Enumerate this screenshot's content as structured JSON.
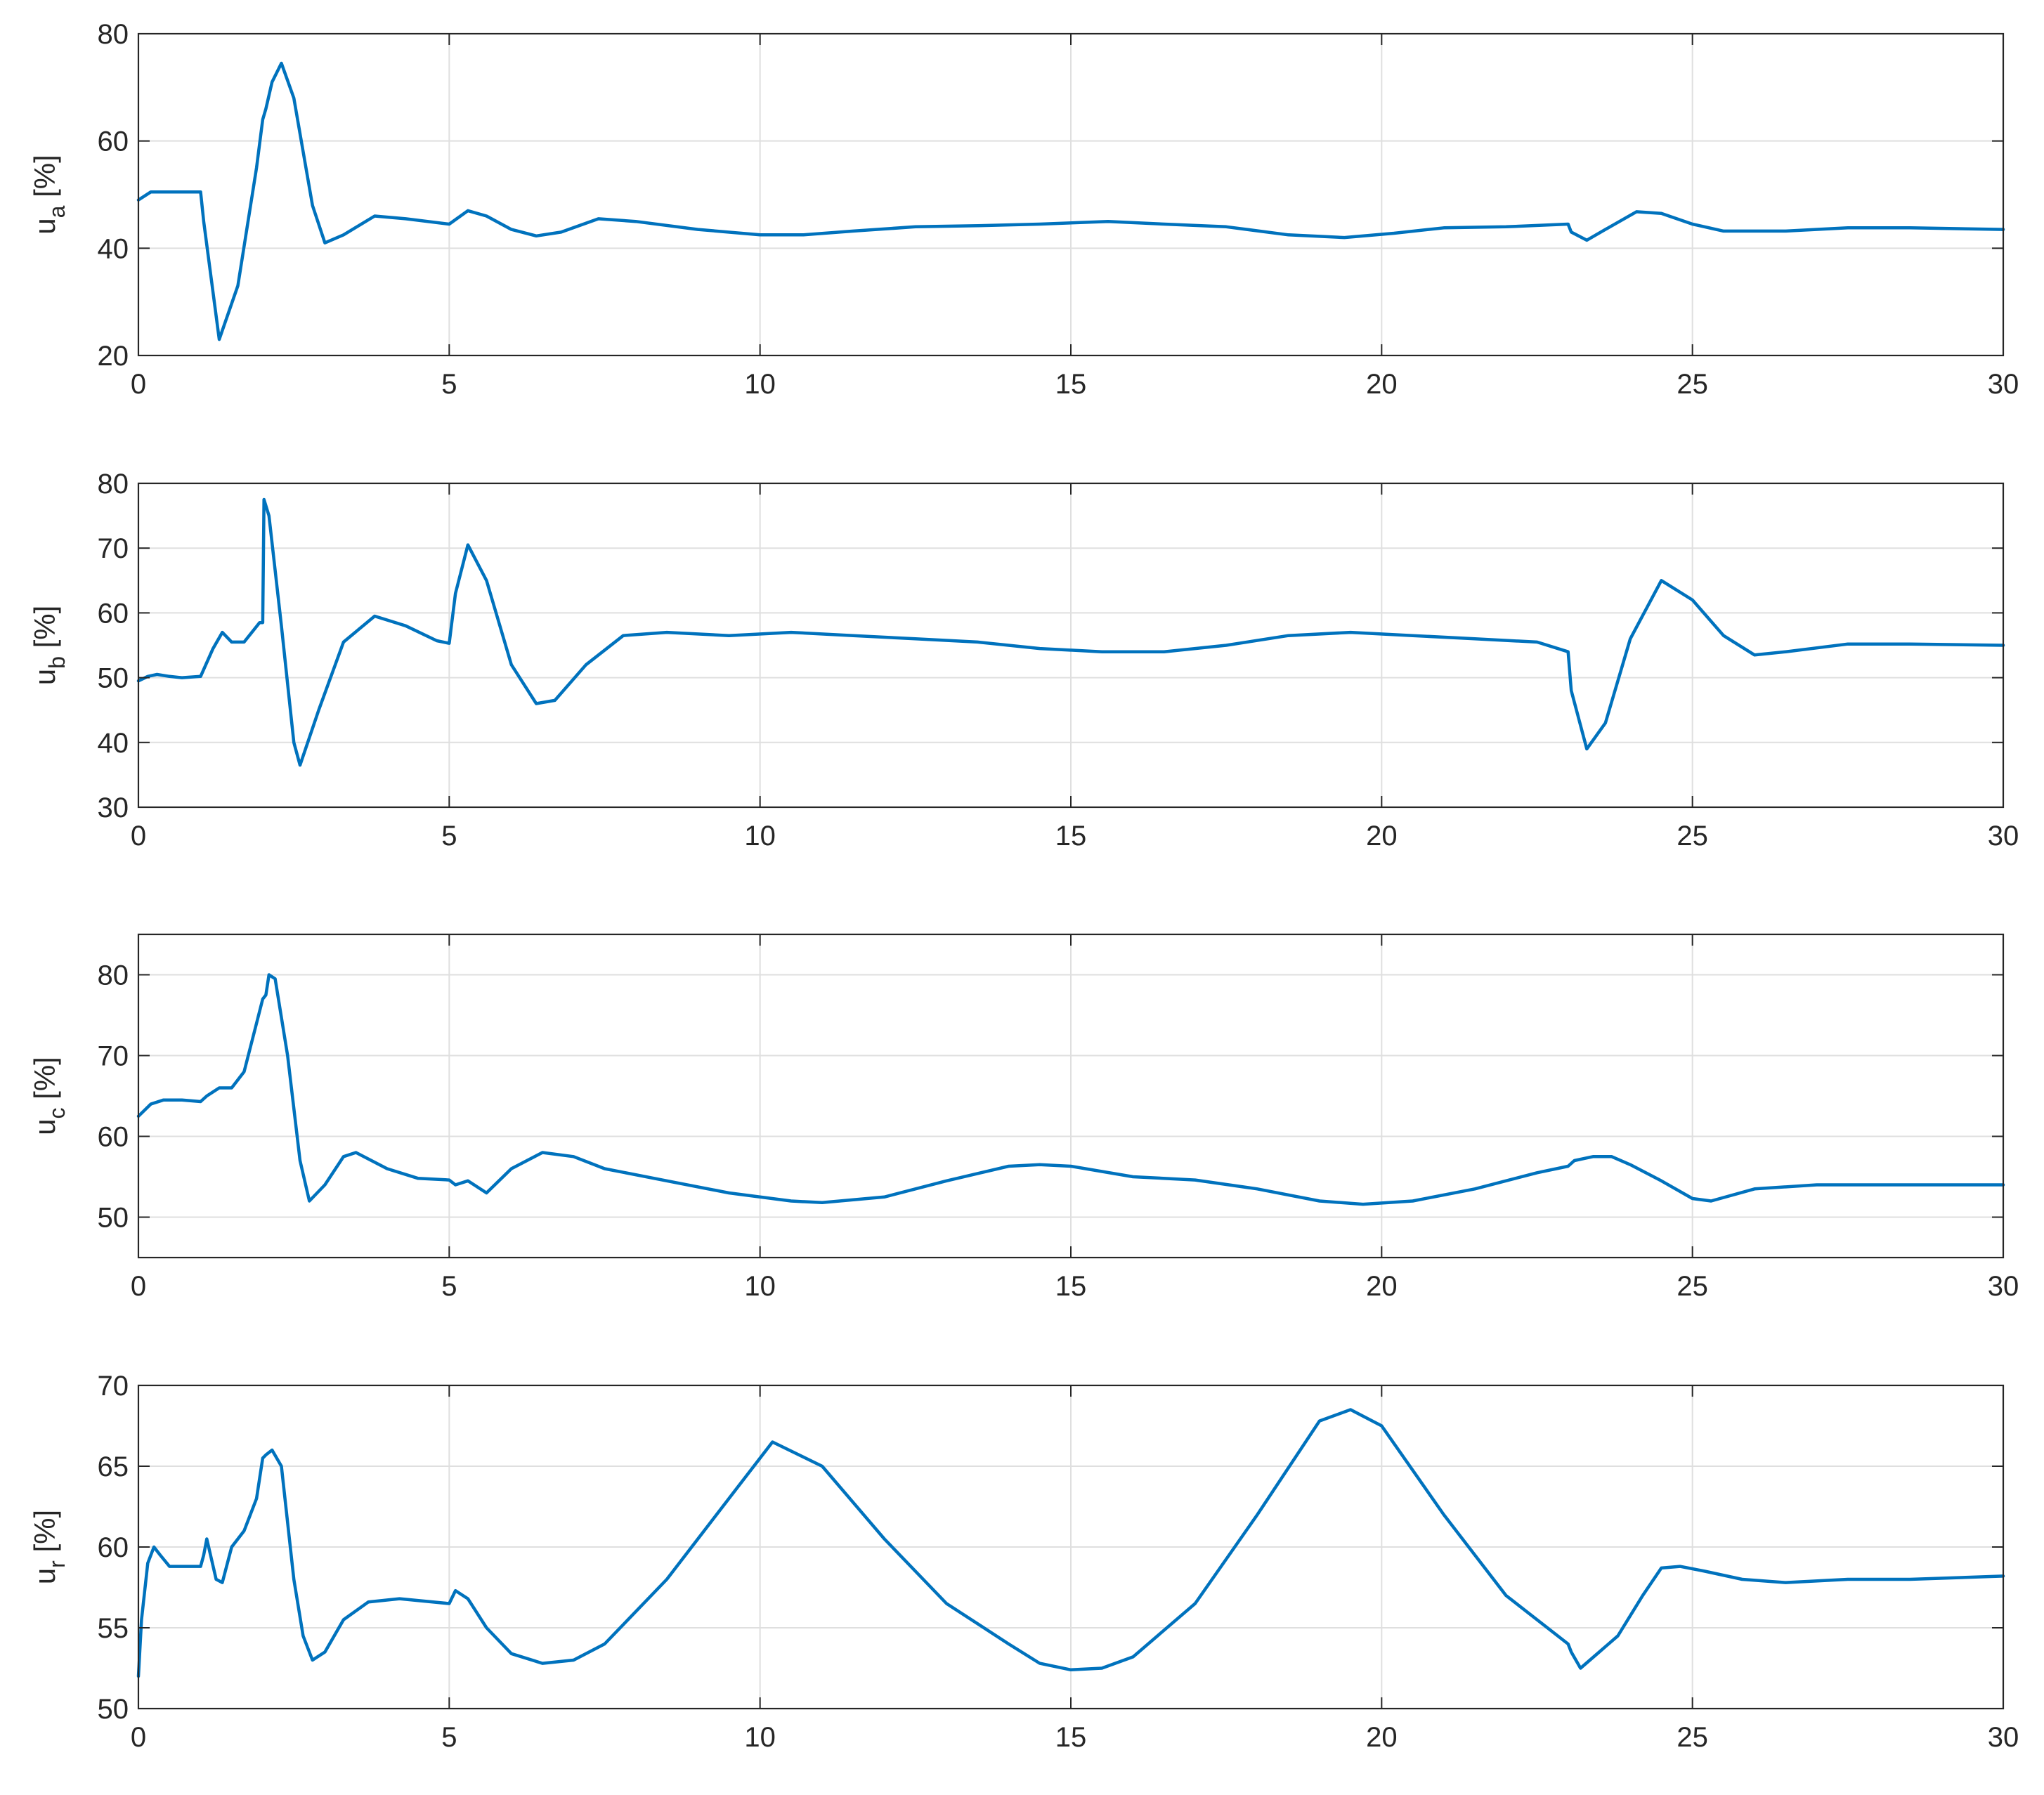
{
  "chart_data": [
    {
      "type": "line",
      "ylabel": "u",
      "ylabel_sub": "a",
      "ylabel_unit": " [%]",
      "xlim": [
        0,
        30
      ],
      "ylim": [
        20,
        80
      ],
      "xticks": [
        0,
        5,
        10,
        15,
        20,
        25,
        30
      ],
      "yticks": [
        20,
        40,
        60,
        80
      ],
      "grid": true,
      "series": [
        {
          "color": "#0072BD",
          "x": [
            0,
            0.2,
            1.0,
            1.05,
            1.3,
            1.6,
            1.9,
            2.0,
            2.05,
            2.15,
            2.3,
            2.5,
            2.8,
            3.0,
            3.3,
            3.8,
            4.3,
            5.0,
            5.3,
            5.6,
            6.0,
            6.4,
            6.8,
            7.4,
            8.0,
            9.0,
            10.0,
            10.7,
            11.5,
            12.5,
            13.5,
            14.5,
            15.6,
            16.5,
            17.5,
            18.5,
            19.4,
            20.2,
            21.0,
            22.0,
            23.0,
            23.05,
            23.3,
            23.6,
            24.1,
            24.5,
            25.0,
            25.5,
            26.5,
            27.5,
            28.5,
            30.0
          ],
          "y": [
            49,
            50.5,
            50.5,
            45,
            23,
            33,
            55,
            64,
            66,
            71,
            74.5,
            68,
            48,
            41,
            42.5,
            46,
            45.5,
            44.5,
            47,
            46,
            43.5,
            42.3,
            43,
            45.5,
            45,
            43.5,
            42.5,
            42.5,
            43.2,
            44,
            44.2,
            44.5,
            45,
            44.5,
            44,
            42.5,
            42,
            42.8,
            43.8,
            44,
            44.5,
            43,
            41.5,
            43.5,
            46.8,
            46.5,
            44.5,
            43.2,
            43.2,
            43.8,
            43.8,
            43.5
          ]
        }
      ]
    },
    {
      "type": "line",
      "ylabel": "u",
      "ylabel_sub": "b",
      "ylabel_unit": " [%]",
      "xlim": [
        0,
        30
      ],
      "ylim": [
        30,
        80
      ],
      "xticks": [
        0,
        5,
        10,
        15,
        20,
        25,
        30
      ],
      "yticks": [
        30,
        40,
        50,
        60,
        70,
        80
      ],
      "grid": true,
      "series": [
        {
          "color": "#0072BD",
          "x": [
            0,
            0.15,
            0.3,
            0.5,
            0.7,
            1.0,
            1.2,
            1.35,
            1.5,
            1.7,
            1.95,
            2.0,
            2.02,
            2.1,
            2.3,
            2.5,
            2.6,
            2.9,
            3.3,
            3.8,
            4.3,
            4.8,
            5.0,
            5.1,
            5.3,
            5.6,
            6.0,
            6.4,
            6.7,
            7.2,
            7.8,
            8.5,
            9.5,
            10.5,
            11.5,
            12.5,
            13.5,
            14.5,
            15.5,
            16.5,
            17.5,
            18.5,
            19.5,
            20.5,
            21.5,
            22.5,
            23.0,
            23.05,
            23.3,
            23.6,
            24.0,
            24.5,
            25.0,
            25.5,
            26.0,
            26.5,
            27.5,
            28.5,
            30.0
          ],
          "y": [
            49.5,
            50.2,
            50.5,
            50.2,
            50,
            50.2,
            54.5,
            57,
            55.5,
            55.5,
            58.5,
            58.5,
            77.5,
            75,
            58,
            40,
            36.5,
            45,
            55.5,
            59.5,
            58,
            55.7,
            55.3,
            63,
            70.5,
            65,
            52,
            46,
            46.5,
            52,
            56.5,
            57,
            56.5,
            57,
            56.5,
            56,
            55.5,
            54.5,
            54,
            54,
            55,
            56.5,
            57,
            56.5,
            56,
            55.5,
            54,
            48,
            39,
            43,
            56,
            65,
            62,
            56.5,
            53.5,
            54,
            55.2,
            55.2,
            55
          ]
        }
      ]
    },
    {
      "type": "line",
      "ylabel": "u",
      "ylabel_sub": "c",
      "ylabel_unit": " [%]",
      "xlim": [
        0,
        30
      ],
      "ylim": [
        45,
        85
      ],
      "xticks": [
        0,
        5,
        10,
        15,
        20,
        25,
        30
      ],
      "yticks": [
        50,
        60,
        70,
        80
      ],
      "grid": true,
      "series": [
        {
          "color": "#0072BD",
          "x": [
            0,
            0.2,
            0.4,
            0.7,
            1.0,
            1.1,
            1.3,
            1.5,
            1.7,
            1.9,
            2.0,
            2.05,
            2.1,
            2.2,
            2.4,
            2.6,
            2.75,
            3.0,
            3.3,
            3.5,
            4.0,
            4.5,
            5.0,
            5.1,
            5.3,
            5.6,
            6.0,
            6.5,
            7.0,
            7.5,
            8.5,
            9.5,
            10.5,
            11.0,
            12.0,
            13.0,
            14.0,
            14.5,
            15.0,
            16.0,
            17.0,
            18.0,
            19.0,
            19.7,
            20.5,
            21.5,
            22.5,
            23.0,
            23.1,
            23.4,
            23.7,
            24.0,
            24.5,
            25.0,
            25.3,
            26.0,
            27.0,
            28.0,
            30.0
          ],
          "y": [
            62.5,
            64,
            64.5,
            64.5,
            64.3,
            65,
            66,
            66,
            68,
            74,
            77,
            77.5,
            80,
            79.5,
            70,
            57,
            52,
            54,
            57.5,
            58,
            56,
            54.8,
            54.6,
            54,
            54.5,
            53,
            56,
            58,
            57.5,
            56,
            54.5,
            53,
            52,
            51.8,
            52.5,
            54.5,
            56.3,
            56.5,
            56.3,
            55,
            54.6,
            53.5,
            52,
            51.6,
            52,
            53.5,
            55.5,
            56.3,
            57,
            57.5,
            57.5,
            56.5,
            54.5,
            52.3,
            52,
            53.5,
            54,
            54,
            54
          ]
        }
      ]
    },
    {
      "type": "line",
      "ylabel": "u",
      "ylabel_sub": "r",
      "ylabel_unit": " [%]",
      "xlim": [
        0,
        30
      ],
      "ylim": [
        50,
        70
      ],
      "xticks": [
        0,
        5,
        10,
        15,
        20,
        25,
        30
      ],
      "yticks": [
        50,
        55,
        60,
        65,
        70
      ],
      "grid": true,
      "series": [
        {
          "color": "#0072BD",
          "x": [
            0,
            0.05,
            0.15,
            0.25,
            0.35,
            0.5,
            0.7,
            1.0,
            1.05,
            1.1,
            1.25,
            1.35,
            1.5,
            1.7,
            1.9,
            2.0,
            2.05,
            2.15,
            2.3,
            2.5,
            2.65,
            2.8,
            3.0,
            3.3,
            3.7,
            4.2,
            5.0,
            5.1,
            5.3,
            5.6,
            6.0,
            6.5,
            7.0,
            7.5,
            8.5,
            9.5,
            10.2,
            11.0,
            12.0,
            13.0,
            14.0,
            14.5,
            15.0,
            15.5,
            16.0,
            17.0,
            18.0,
            19.0,
            19.5,
            20.0,
            21.0,
            22.0,
            23.0,
            23.05,
            23.2,
            23.5,
            23.8,
            24.2,
            24.5,
            24.8,
            25.2,
            25.8,
            26.5,
            27.5,
            28.5,
            30.0
          ],
          "y": [
            52,
            55.5,
            59,
            60,
            59.5,
            58.8,
            58.8,
            58.8,
            59.5,
            60.5,
            58,
            57.8,
            60,
            61,
            63,
            65.5,
            65.7,
            66,
            65,
            58,
            54.5,
            53,
            53.5,
            55.5,
            56.6,
            56.8,
            56.5,
            57.3,
            56.8,
            55,
            53.4,
            52.8,
            53,
            54,
            58,
            63,
            66.5,
            65,
            60.5,
            56.5,
            54,
            52.8,
            52.4,
            52.5,
            53.2,
            56.5,
            62,
            67.8,
            68.5,
            67.5,
            62,
            57,
            54,
            53.5,
            52.5,
            53.5,
            54.5,
            57,
            58.7,
            58.8,
            58.5,
            58,
            57.8,
            58,
            58,
            58.2
          ]
        }
      ]
    }
  ]
}
